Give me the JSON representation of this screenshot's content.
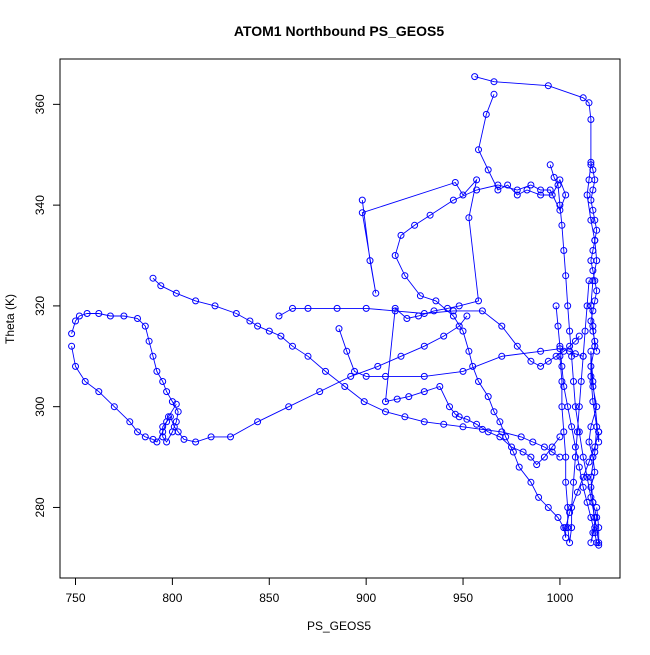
{
  "chart_data": {
    "type": "scatter",
    "title": "ATOM1 Northbound PS_GEOS5",
    "xlabel": "PS_GEOS5",
    "ylabel": "Theta (K)",
    "xlim": [
      742,
      1031
    ],
    "ylim": [
      266,
      369
    ],
    "xticks": [
      750,
      800,
      850,
      900,
      950,
      1000
    ],
    "yticks": [
      280,
      300,
      320,
      340,
      360
    ],
    "grid": false,
    "legend": "none",
    "colors": {
      "series": "#0000ff",
      "axis": "#000000",
      "background": "#ffffff"
    },
    "series": [
      {
        "style": "line-and-open-circles",
        "x": [
          956,
          966,
          994,
          1012,
          1015,
          1016,
          1016,
          1015,
          1014,
          1016,
          1018,
          1019,
          1017,
          1016,
          1017,
          1018,
          1016,
          1017,
          1019,
          1016,
          1015,
          1017,
          1018,
          1016,
          1017,
          1019,
          1017,
          1016,
          1018,
          1017,
          1016,
          1018,
          1019,
          1017,
          1016,
          1016,
          1017,
          1020,
          1020
        ],
        "y": [
          365.5,
          364.5,
          363.7,
          361.3,
          360.3,
          357.0,
          348.0,
          345.0,
          342.0,
          337.0,
          333.0,
          329.0,
          325.0,
          320.0,
          316.0,
          312.0,
          308.0,
          304.0,
          300.0,
          296.0,
          293.0,
          290.0,
          287.0,
          284.0,
          281.0,
          278.0,
          275.0,
          273.0,
          276.0,
          281.0,
          286.0,
          291.0,
          296.0,
          301.0,
          306.0,
          311.0,
          305.0,
          293.0,
          295.0
        ]
      },
      {
        "style": "line-and-open-circles",
        "x": [
          966,
          962,
          958,
          963,
          968,
          973,
          978,
          983,
          990,
          996,
          1000,
          1003,
          1000,
          995,
          990,
          985,
          978,
          968,
          957,
          945,
          933,
          925,
          918,
          915,
          920,
          928,
          936,
          945,
          950,
          953,
          955,
          958,
          963,
          966,
          969,
          972,
          976,
          979,
          985,
          989,
          994,
          999,
          1002,
          1003,
          1003,
          1005,
          1009,
          1012,
          1015,
          1018,
          1020
        ],
        "y": [
          362.0,
          358.0,
          351.0,
          347.0,
          343.0,
          344.0,
          342.0,
          343.0,
          342.0,
          342.0,
          345.0,
          342.0,
          339.0,
          343.0,
          343.0,
          344.0,
          343.0,
          344.0,
          343.0,
          341.0,
          338.0,
          336.0,
          334.0,
          330.0,
          326.0,
          322.0,
          321.0,
          318.0,
          315.0,
          311.0,
          308.0,
          305.0,
          302.0,
          299.0,
          297.0,
          294.0,
          291.0,
          288.0,
          285.0,
          282.0,
          280.0,
          278.0,
          276.0,
          274.0,
          276.0,
          279.0,
          283.0,
          286.0,
          289.0,
          292.0,
          295.0
        ]
      },
      {
        "style": "line-and-open-circles",
        "x": [
          898,
          902,
          905,
          898,
          946,
          950,
          957,
          953,
          958,
          948,
          942,
          935,
          927,
          921,
          915,
          910,
          916,
          922,
          930,
          938,
          943,
          946,
          948,
          952,
          957,
          963,
          969,
          975,
          981,
          985,
          988,
          992,
          996,
          1000
        ],
        "y": [
          341.0,
          329.0,
          322.5,
          338.5,
          344.5,
          342.0,
          345.0,
          337.5,
          321.0,
          320.0,
          319.5,
          319.0,
          318.0,
          317.5,
          319.5,
          301.0,
          301.5,
          302.0,
          303.0,
          304.0,
          300.0,
          298.5,
          298.0,
          297.5,
          296.5,
          295.0,
          294.0,
          292.0,
          291.0,
          290.0,
          288.5,
          290.0,
          292.0,
          294.0
        ]
      },
      {
        "style": "line-and-open-circles",
        "x": [
          790,
          794,
          802,
          812,
          822,
          833,
          840,
          844,
          850,
          856,
          862,
          870,
          879,
          889,
          899,
          910,
          920,
          930,
          940,
          950,
          960,
          970,
          980,
          986,
          992,
          996,
          1000
        ],
        "y": [
          325.5,
          324.0,
          322.5,
          321.0,
          320.0,
          318.5,
          317.0,
          316.0,
          315.0,
          314.0,
          312.0,
          310.0,
          307.0,
          304.0,
          301.0,
          299.0,
          298.0,
          297.0,
          296.5,
          296.0,
          295.5,
          295.0,
          294.0,
          293.0,
          292.0,
          291.0,
          290.0
        ]
      },
      {
        "style": "line-and-open-circles",
        "x": [
          748,
          750,
          752,
          756,
          762,
          768,
          775,
          782,
          786,
          788,
          790,
          792,
          795,
          797,
          800,
          803,
          802,
          800,
          797,
          795,
          795,
          797,
          799,
          801,
          803,
          806,
          812,
          820,
          830,
          844,
          860,
          876,
          892,
          906,
          918,
          930,
          940,
          948,
          952
        ],
        "y": [
          314.5,
          317.0,
          318.0,
          318.5,
          318.5,
          318.0,
          318.0,
          317.5,
          316.0,
          313.0,
          310.0,
          307.0,
          305.0,
          303.0,
          301.0,
          299.0,
          297.0,
          295.0,
          293.0,
          294.0,
          296.0,
          297.0,
          298.0,
          296.0,
          295.0,
          293.5,
          293.0,
          294.0,
          294.0,
          297.0,
          300.0,
          303.0,
          306.0,
          308.0,
          310.0,
          312.0,
          314.0,
          316.0,
          318.0
        ]
      },
      {
        "style": "line-and-open-circles",
        "x": [
          748,
          750,
          755,
          762,
          770,
          778,
          782,
          786,
          790,
          792,
          795,
          798,
          802
        ],
        "y": [
          312.0,
          308.0,
          305.0,
          303.0,
          300.0,
          297.0,
          295.0,
          294.0,
          293.5,
          293.0,
          295.0,
          298.0,
          300.5
        ]
      },
      {
        "style": "line-and-open-circles",
        "x": [
          855,
          862,
          870,
          885,
          900,
          915,
          930,
          945,
          960,
          970,
          978,
          985,
          990,
          994,
          998,
          1002,
          1005,
          1008,
          1010
        ],
        "y": [
          318.0,
          319.5,
          319.5,
          319.5,
          319.5,
          319.0,
          318.5,
          319.0,
          319.0,
          316.0,
          312.0,
          309.0,
          308.0,
          309.0,
          310.0,
          311.0,
          312.0,
          313.0,
          314.0
        ]
      },
      {
        "style": "line-and-open-circles",
        "x": [
          886,
          890,
          894,
          900,
          910,
          930,
          950,
          970,
          990,
          1000,
          1005,
          1008,
          1012
        ],
        "y": [
          315.5,
          311.0,
          307.0,
          306.0,
          306.0,
          306.0,
          307.0,
          310.0,
          311.0,
          311.5,
          311.0,
          310.5,
          310.0
        ]
      },
      {
        "style": "line-and-open-circles",
        "x": [
          995,
          997,
          999,
          1000,
          1001,
          1002,
          1003,
          1004,
          1005,
          1006,
          1007,
          1008,
          1010,
          1012,
          1014,
          1016,
          1018,
          1020
        ],
        "y": [
          348.0,
          345.5,
          344.0,
          340.0,
          336.0,
          331.0,
          326.0,
          320.0,
          315.0,
          310.0,
          305.0,
          300.0,
          295.0,
          290.0,
          286.0,
          282.0,
          278.0,
          273.0
        ]
      },
      {
        "style": "line-and-open-circles",
        "x": [
          1000,
          1001,
          1001,
          1002,
          1003,
          1003,
          1004,
          1004,
          1005,
          1006,
          1006,
          1007,
          1008,
          1009,
          1010,
          1011,
          1012,
          1013,
          1014,
          1015
        ],
        "y": [
          310.0,
          305.0,
          300.0,
          295.0,
          290.0,
          285.0,
          280.0,
          276.0,
          273.0,
          276.0,
          280.0,
          285.0,
          290.0,
          295.0,
          300.0,
          305.0,
          310.0,
          315.0,
          320.0,
          325.0
        ]
      },
      {
        "style": "line-and-open-circles",
        "x": [
          998,
          999,
          1000,
          1001,
          1002,
          1004,
          1006,
          1008,
          1010,
          1012,
          1014,
          1016,
          1018,
          1019,
          1020,
          1020,
          1019
        ],
        "y": [
          320.0,
          316.0,
          312.0,
          308.0,
          304.0,
          300.0,
          296.0,
          292.0,
          288.0,
          284.0,
          281.0,
          278.0,
          275.0,
          273.0,
          272.5,
          276.0,
          280.0
        ]
      },
      {
        "style": "line-and-open-circles",
        "x": [
          1016,
          1017,
          1018,
          1017,
          1016,
          1017,
          1018,
          1019,
          1018,
          1017,
          1016,
          1017,
          1018,
          1019,
          1018,
          1017,
          1016,
          1017,
          1018,
          1019
        ],
        "y": [
          348.5,
          347.0,
          345.0,
          343.0,
          341.0,
          339.0,
          337.0,
          335.0,
          333.0,
          331.0,
          329.0,
          327.0,
          325.0,
          323.0,
          321.0,
          319.0,
          317.0,
          315.0,
          313.0,
          311.0
        ]
      }
    ]
  }
}
